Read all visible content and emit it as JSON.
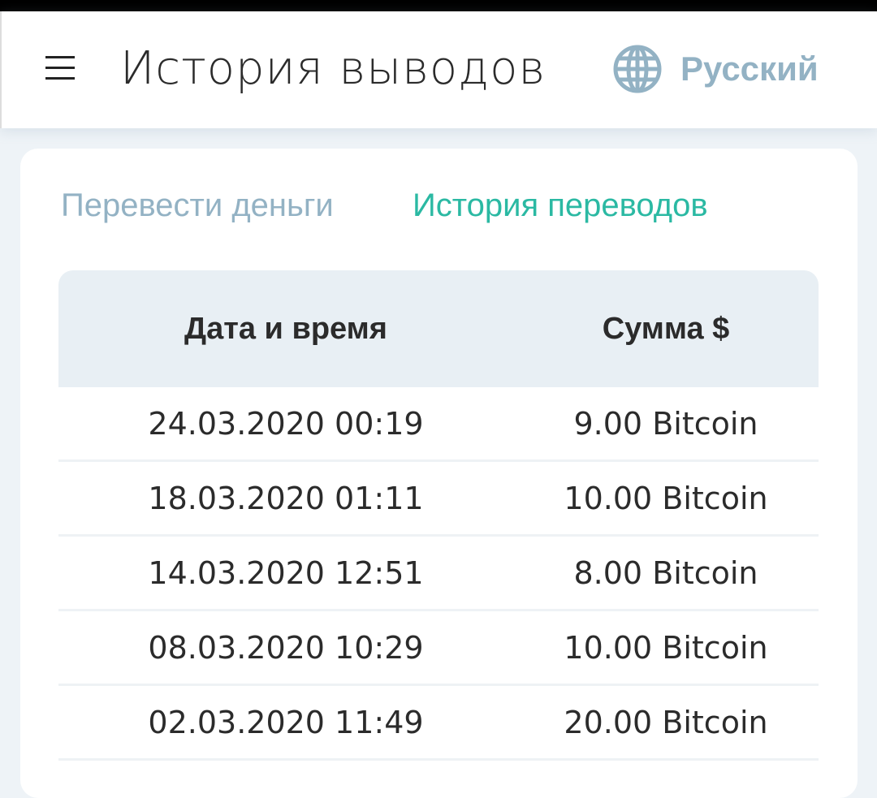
{
  "header": {
    "title": "История выводов",
    "language": "Русский",
    "icons": {
      "menu": "hamburger-icon",
      "language": "globe-icon"
    }
  },
  "tabs": [
    {
      "label": "Перевести деньги",
      "active": false
    },
    {
      "label": "История переводов",
      "active": true
    }
  ],
  "colors": {
    "accent": "#2bb9a3",
    "muted": "#93b2c4",
    "table_header_bg": "#e8eff4"
  },
  "table": {
    "columns": [
      "Дата и время",
      "Сумма $"
    ],
    "rows": [
      [
        "24.03.2020 00:19",
        "9.00 Bitcoin"
      ],
      [
        "18.03.2020 01:11",
        "10.00 Bitcoin"
      ],
      [
        "14.03.2020 12:51",
        "8.00 Bitcoin"
      ],
      [
        "08.03.2020 10:29",
        "10.00 Bitcoin"
      ],
      [
        "02.03.2020 11:49",
        "20.00 Bitcoin"
      ]
    ]
  }
}
